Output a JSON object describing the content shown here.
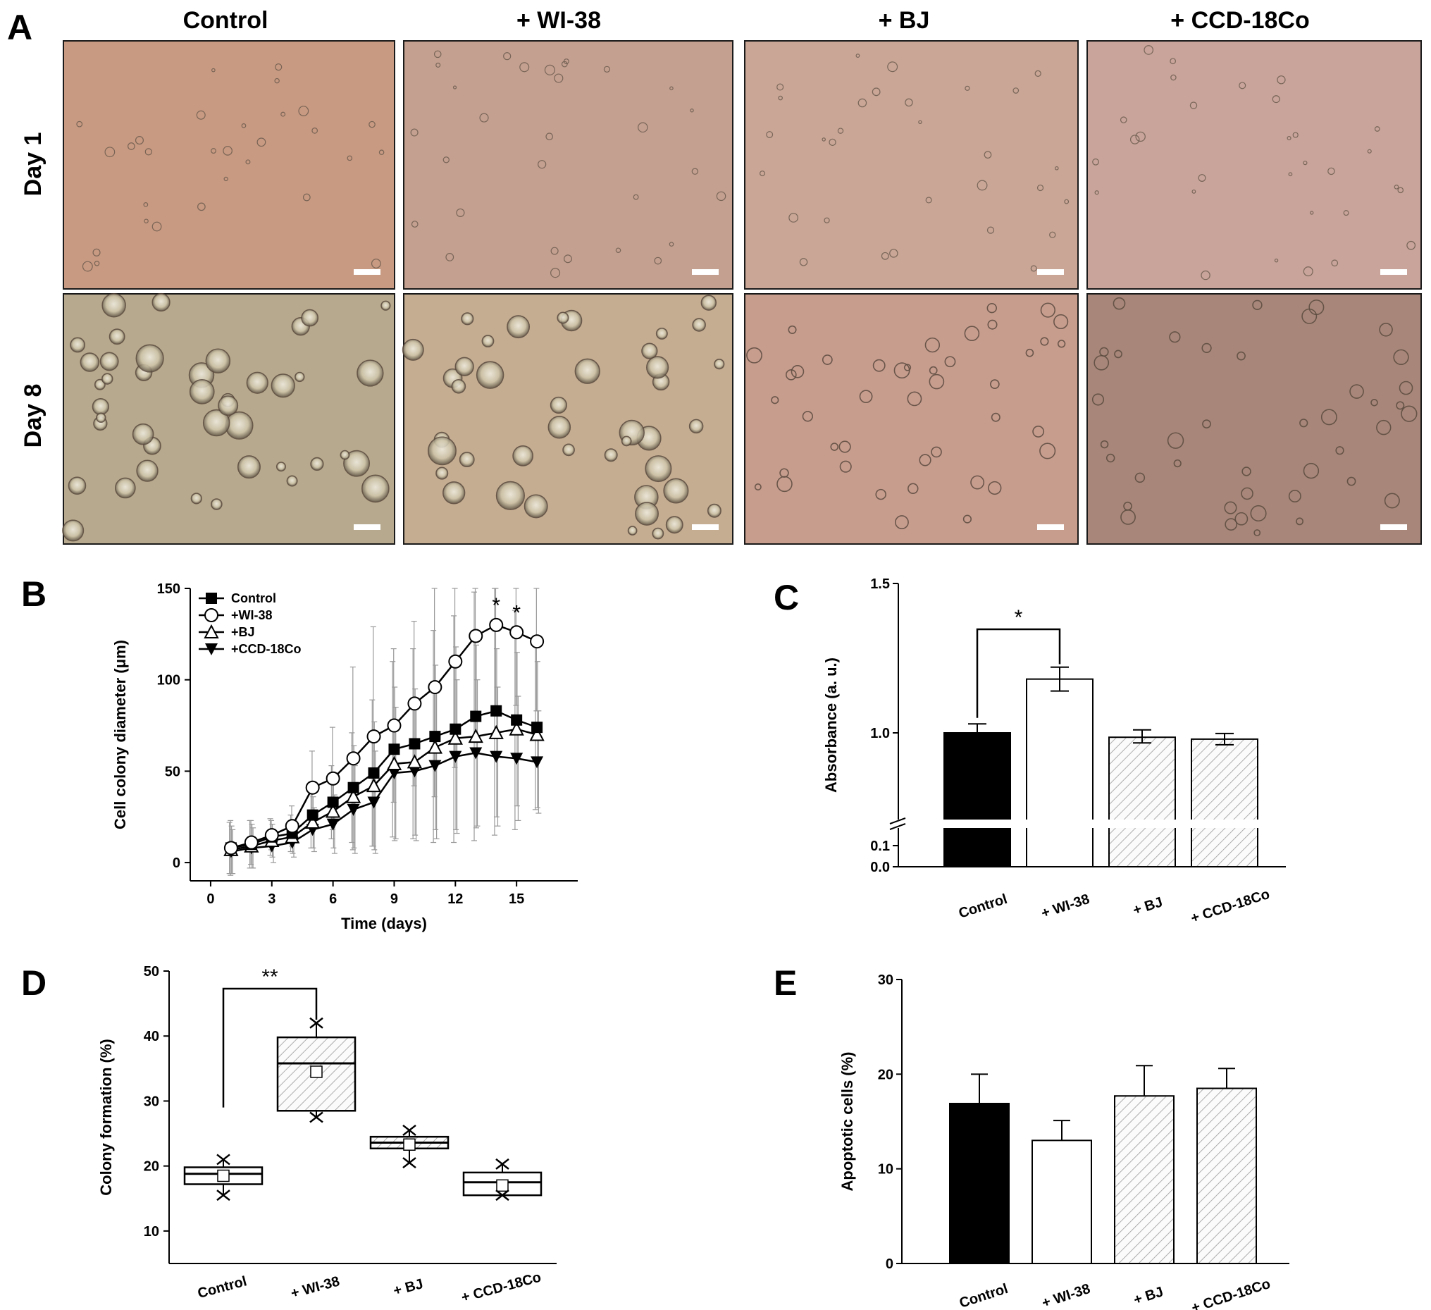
{
  "panel_a": {
    "label": "A",
    "columns": [
      "Control",
      "+ WI-38",
      "+ BJ",
      "+ CCD-18Co"
    ],
    "rows": [
      "Day 1",
      "Day 8"
    ]
  },
  "chart_data": [
    {
      "panel": "B",
      "type": "line",
      "xlabel": "Time (days)",
      "ylabel": "Cell colony diameter (μm)",
      "xlim": [
        -1,
        18
      ],
      "ylim": [
        -10,
        150
      ],
      "xticks": [
        0,
        3,
        6,
        9,
        12,
        15
      ],
      "yticks": [
        0,
        50,
        100,
        150
      ],
      "x": [
        1,
        2,
        3,
        4,
        5,
        6,
        7,
        8,
        9,
        10,
        11,
        12,
        13,
        14,
        15,
        16
      ],
      "legend_position": "top-left",
      "series": [
        {
          "name": "Control",
          "marker": "filled-square",
          "values": [
            8,
            10,
            14,
            16,
            26,
            33,
            41,
            49,
            62,
            65,
            69,
            73,
            80,
            83,
            78,
            74
          ],
          "error": [
            14,
            13,
            10,
            10,
            18,
            20,
            30,
            40,
            48,
            52,
            58,
            62,
            68,
            68,
            60,
            45
          ]
        },
        {
          "name": "+WI-38",
          "marker": "open-circle",
          "values": [
            8,
            11,
            15,
            20,
            41,
            46,
            57,
            69,
            75,
            87,
            96,
            110,
            124,
            130,
            126,
            121
          ],
          "error": [
            15,
            12,
            8,
            11,
            20,
            28,
            50,
            60,
            42,
            45,
            60,
            58,
            55,
            48,
            40,
            38
          ]
        },
        {
          "name": "+BJ",
          "marker": "open-triangle-up",
          "values": [
            7,
            9,
            12,
            14,
            22,
            28,
            36,
            42,
            54,
            55,
            63,
            68,
            69,
            71,
            73,
            70
          ],
          "error": [
            13,
            12,
            9,
            9,
            14,
            20,
            28,
            35,
            42,
            40,
            45,
            50,
            50,
            46,
            42,
            40
          ]
        },
        {
          "name": "+CCD-18Co",
          "marker": "filled-triangle-down",
          "values": [
            6,
            8,
            9,
            11,
            18,
            21,
            29,
            33,
            49,
            50,
            53,
            58,
            60,
            58,
            57,
            55
          ],
          "error": [
            12,
            11,
            9,
            8,
            12,
            16,
            24,
            28,
            36,
            38,
            40,
            42,
            40,
            38,
            34,
            28
          ]
        }
      ],
      "significance": [
        {
          "x": 14,
          "label": "*"
        },
        {
          "x": 15,
          "label": "*"
        }
      ]
    },
    {
      "panel": "C",
      "type": "bar",
      "ylabel": "Absorbance (a. u.)",
      "categories": [
        "Control",
        "+ WI-38",
        "+ BJ",
        "+ CCD-18Co"
      ],
      "values": [
        1.0,
        1.18,
        0.965,
        0.95
      ],
      "error": [
        0.03,
        0.04,
        0.045,
        0.045
      ],
      "fill": [
        "solid-black",
        "white",
        "hatched",
        "hatched"
      ],
      "yticks": [
        "0.0",
        "0.1",
        "1.0",
        "1.5"
      ],
      "axis_break": true,
      "significance": [
        {
          "from": "Control",
          "to": "+ WI-38",
          "label": "*"
        }
      ]
    },
    {
      "panel": "D",
      "type": "box",
      "ylabel": "Colony formation (%)",
      "categories": [
        "Control",
        "+ WI-38",
        "+ BJ",
        "+ CCD-18Co"
      ],
      "ylim": [
        5,
        50
      ],
      "yticks": [
        10,
        20,
        30,
        40,
        50
      ],
      "boxes": [
        {
          "q1": 17.2,
          "median": 18.8,
          "q3": 19.8,
          "mean": 18.5,
          "min": 15.5,
          "max": 21.0
        },
        {
          "q1": 28.5,
          "median": 35.8,
          "q3": 39.8,
          "mean": 34.5,
          "min": 27.5,
          "max": 42.0
        },
        {
          "q1": 22.7,
          "median": 23.6,
          "q3": 24.5,
          "mean": 23.3,
          "min": 20.5,
          "max": 25.5
        },
        {
          "q1": 15.5,
          "median": 17.5,
          "q3": 19.0,
          "mean": 17.0,
          "min": 15.5,
          "max": 20.3
        }
      ],
      "fill": [
        "white",
        "hatched",
        "hatched",
        "white"
      ],
      "significance": [
        {
          "from": "Control",
          "to": "+ WI-38",
          "label": "**"
        }
      ]
    },
    {
      "panel": "E",
      "type": "bar",
      "ylabel": "Apoptotic cells (%)",
      "categories": [
        "Control",
        "+ WI-38",
        "+ BJ",
        "+ CCD-18Co"
      ],
      "values": [
        16.9,
        13.0,
        17.7,
        18.5
      ],
      "error": [
        3.1,
        2.1,
        3.2,
        2.1
      ],
      "fill": [
        "solid-black",
        "white",
        "hatched",
        "hatched"
      ],
      "ylim": [
        0,
        30
      ],
      "yticks": [
        0,
        10,
        20,
        30
      ]
    }
  ]
}
